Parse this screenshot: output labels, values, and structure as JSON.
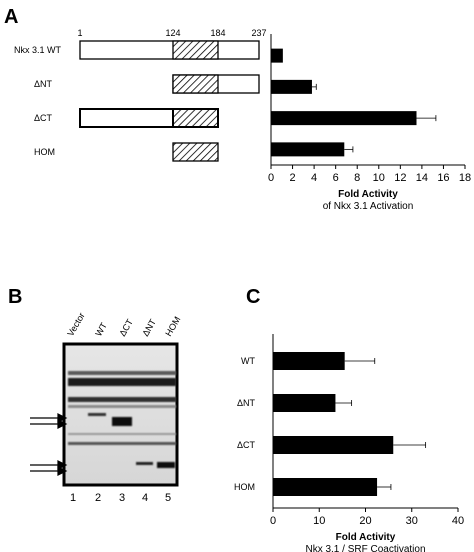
{
  "panels": {
    "a": {
      "letter": "A",
      "construct_numbers": [
        "1",
        "124",
        "184",
        "237"
      ],
      "constructs": [
        "Nkx 3.1 WT",
        "ΔNT",
        "ΔCT",
        "HOM"
      ]
    },
    "b": {
      "letter": "B",
      "lane_labels": [
        "Vector",
        "WT",
        "ΔCT",
        "ΔNT",
        "HOM"
      ],
      "lane_numbers": [
        "1",
        "2",
        "3",
        "4",
        "5"
      ]
    },
    "c": {
      "letter": "C"
    }
  },
  "chart_data": [
    {
      "type": "bar",
      "orientation": "horizontal",
      "categories": [
        "Nkx 3.1 WT",
        "ΔNT",
        "ΔCT",
        "HOM"
      ],
      "values": [
        1.1,
        3.8,
        13.5,
        6.8
      ],
      "errors": [
        0,
        0.4,
        1.8,
        0.8
      ],
      "xlabel": "Fold Activity",
      "xlabel_sub": "of Nkx 3.1 Activation",
      "xlim": [
        0,
        18
      ],
      "xticks": [
        "0",
        "2",
        "4",
        "6",
        "8",
        "10",
        "12",
        "14",
        "16",
        "18"
      ],
      "grid": false
    },
    {
      "type": "bar",
      "orientation": "horizontal",
      "categories": [
        "WT",
        "ΔNT",
        "ΔCT",
        "HOM"
      ],
      "values": [
        15.5,
        13.5,
        26,
        22.5
      ],
      "errors": [
        6.5,
        3.5,
        7,
        3
      ],
      "xlabel": "Fold Activity",
      "xlabel_sub": "Nkx 3.1 / SRF Coactivation",
      "xlim": [
        0,
        40
      ],
      "xticks": [
        "0",
        "10",
        "20",
        "30",
        "40"
      ],
      "grid": false
    }
  ]
}
